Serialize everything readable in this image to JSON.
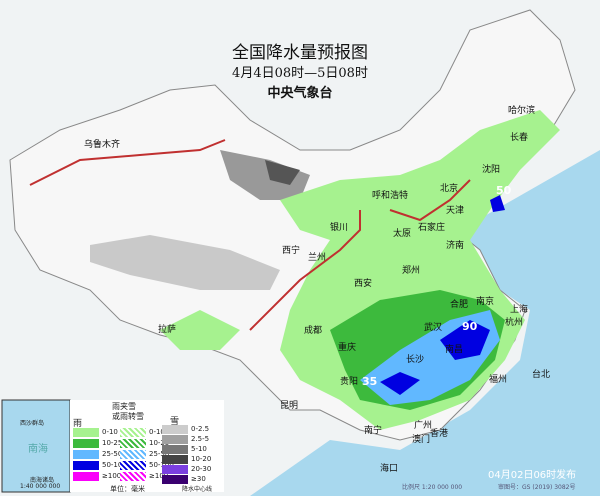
{
  "title": "全国降水量预报图",
  "period": "4月4日08时—5日08时",
  "agency": "中央气象台",
  "issued": "04月02日06时发布",
  "scale": "比例尺 1:20 000 000",
  "map_number": "审图号：GS (2019) 3082号",
  "inset": {
    "label": "南海诸岛",
    "scale": "1:40 000 000",
    "sea": "南海",
    "islands": "西沙群岛"
  },
  "cities": [
    "乌鲁木齐",
    "哈尔滨",
    "长春",
    "沈阳",
    "呼和浩特",
    "北京",
    "天津",
    "银川",
    "太原",
    "石家庄",
    "济南",
    "西宁",
    "兰州",
    "郑州",
    "西安",
    "合肥",
    "南京",
    "上海",
    "成都",
    "武汉",
    "杭州",
    "拉萨",
    "重庆",
    "长沙",
    "南昌",
    "福州",
    "贵阳",
    "台北",
    "昆明",
    "广州",
    "南宁",
    "澳门",
    "香港",
    "海口"
  ],
  "peak_labels": [
    "50",
    "90",
    "35"
  ],
  "legend": {
    "rain": {
      "title": "雨",
      "items": [
        "0-10",
        "10-25",
        "25-50",
        "50-100",
        "≥100"
      ],
      "colors": [
        "#a6f28f",
        "#3dba3d",
        "#61b8ff",
        "#0000e1",
        "#fa00fa"
      ]
    },
    "sleet": {
      "title": "雨夹雪\n或雨转雪",
      "items": [
        "0-10",
        "10-25",
        "25-50",
        "50-100",
        "≥100"
      ]
    },
    "snow": {
      "title": "雪",
      "items": [
        "0-2.5",
        "2.5-5",
        "5-10",
        "10-20",
        "20-30",
        "≥30"
      ],
      "colors": [
        "#cccccc",
        "#a0a0a0",
        "#777777",
        "#444444",
        "#7b3fe0",
        "#3a0070"
      ]
    },
    "unit": "单位：毫米",
    "front": "降水中心线"
  },
  "colors": {
    "sea": "#a8d8ee",
    "land": "#f4f4f4",
    "light_rain": "#a6f28f",
    "moderate_rain": "#3dba3d",
    "heavy_rain": "#61b8ff",
    "rainstorm": "#0000e1"
  }
}
